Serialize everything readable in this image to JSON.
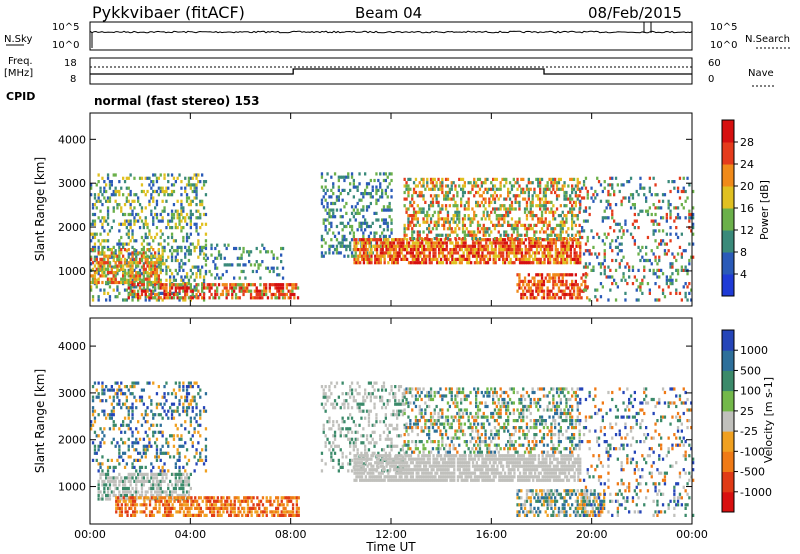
{
  "header": {
    "station": "Pykkvibaer (fitACF)",
    "beam": "Beam 04",
    "date": "08/Feb/2015"
  },
  "top_panel": {
    "left_labels": {
      "nsky": "N.Sky",
      "tick_hi": "10^5",
      "tick_lo": "10^0",
      "freq_line1": "Freq.",
      "freq_line2": "[MHz]",
      "freq_tick_hi": "18",
      "freq_tick_lo": "8",
      "cpid": "CPID"
    },
    "right_labels": {
      "nsearch": "N.Search",
      "tick_hi": "10^5",
      "tick_lo": "10^0",
      "nave": "Nave",
      "nave_tick_hi": "60",
      "nave_tick_lo": "0"
    },
    "mode_text": "normal (fast stereo) 153"
  },
  "chart_data": [
    {
      "type": "heatmap",
      "name": "Power",
      "ylabel": "Slant Range [km]",
      "yticks": [
        "1000",
        "2000",
        "3000",
        "4000"
      ],
      "ylim": [
        200,
        4600
      ],
      "colorbar": {
        "label": "Power [dB]",
        "ticks": [
          "4",
          "8",
          "12",
          "16",
          "20",
          "24",
          "28"
        ],
        "range": [
          0,
          32
        ],
        "colors": [
          "#1f3bd6",
          "#2a5ab8",
          "#3a8a7a",
          "#6bb04a",
          "#e0c021",
          "#f08a1a",
          "#e53b1c",
          "#d61010"
        ]
      }
    },
    {
      "type": "heatmap",
      "name": "Velocity",
      "ylabel": "Slant Range [km]",
      "yticks": [
        "1000",
        "2000",
        "3000",
        "4000"
      ],
      "ylim": [
        200,
        4600
      ],
      "colorbar": {
        "label": "Velocity [m s-1]",
        "ticks": [
          "1000",
          "500",
          "100",
          "25",
          "-25",
          "-100",
          "-500",
          "-1000"
        ],
        "colors": [
          "#2545b8",
          "#2d6f9a",
          "#3b8a6a",
          "#73b84a",
          "#c0c0bc",
          "#f0a020",
          "#ef7a16",
          "#e03a16",
          "#d81010"
        ]
      }
    }
  ],
  "xaxis": {
    "label": "Time UT",
    "ticks": [
      "00:00",
      "04:00",
      "08:00",
      "12:00",
      "16:00",
      "20:00",
      "00:00"
    ]
  }
}
